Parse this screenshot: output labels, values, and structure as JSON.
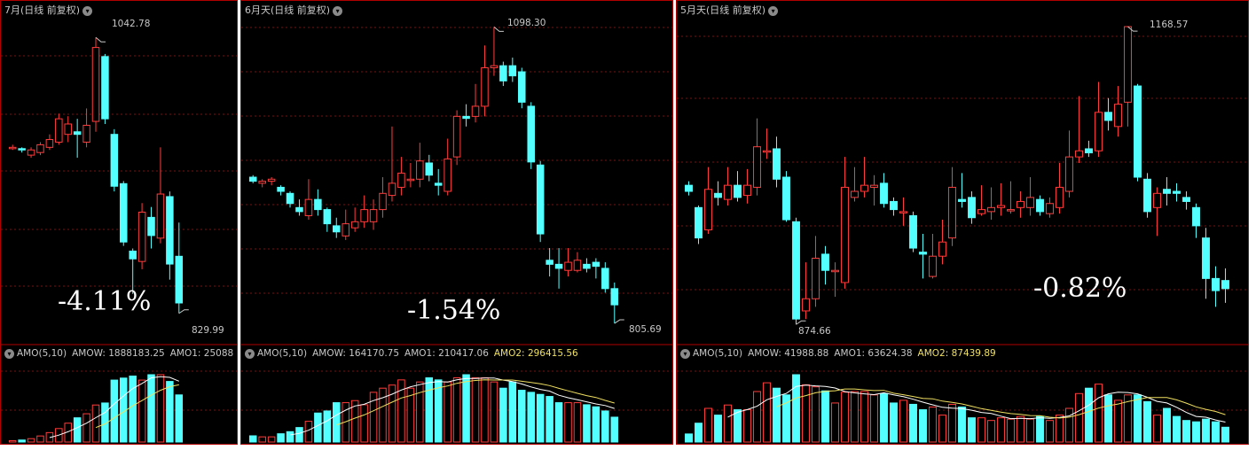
{
  "colors": {
    "up": "#ff3c3c",
    "down": "#54ffff",
    "ma1": "#ffffff",
    "ma2": "#f0e060",
    "grid": "#7a1010",
    "border": "#b00000"
  },
  "icons": {
    "period_menu": "chevron-down-icon",
    "indicator_menu": "chevron-down-icon"
  },
  "panels": [
    {
      "title": "7月(日线 前复权)",
      "high_label": "1042.78",
      "low_label": "829.99",
      "change_pct": "-4.11%",
      "vol": {
        "name": "AMO(5,10)",
        "amow": "AMOW: 1888183.25",
        "amo1": "AMO1: 25088"
      }
    },
    {
      "title": "6月天(日线 前复权)",
      "high_label": "1098.30",
      "low_label": "805.69",
      "change_pct": "-1.54%",
      "vol": {
        "name": "AMO(5,10)",
        "amow": "AMOW: 164170.75",
        "amo1": "AMO1: 210417.06",
        "amo2": "AMO2: 296415.56"
      }
    },
    {
      "title": "5月天(日线 前复权)",
      "high_label": "1168.57",
      "low_label": "874.66",
      "change_pct": "-0.82%",
      "vol": {
        "name": "AMO(5,10)",
        "amow": "AMOW: 41988.88",
        "amo1": "AMO1: 63624.38",
        "amo2": "AMO2: 87439.89"
      }
    }
  ],
  "chart_data": [
    {
      "type": "candlestick",
      "title": "7月(日线 前复权)",
      "ylim": [
        810,
        1060
      ],
      "candles": [
        [
          958,
          958,
          960,
          956
        ],
        [
          957,
          956,
          958,
          954
        ],
        [
          952,
          956,
          958,
          950
        ],
        [
          954,
          960,
          962,
          952
        ],
        [
          958,
          964,
          968,
          956
        ],
        [
          962,
          980,
          984,
          960
        ],
        [
          968,
          976,
          982,
          962
        ],
        [
          970,
          968,
          980,
          950
        ],
        [
          962,
          975,
          988,
          958
        ],
        [
          978,
          1035,
          1042.78,
          970
        ],
        [
          1028,
          980,
          1030,
          976
        ],
        [
          968,
          928,
          972,
          924
        ],
        [
          930,
          885,
          932,
          882
        ],
        [
          878,
          872,
          880,
          845
        ],
        [
          870,
          908,
          915,
          864
        ],
        [
          904,
          890,
          912,
          880
        ],
        [
          888,
          922,
          958,
          884
        ],
        [
          920,
          868,
          924,
          856
        ],
        [
          874,
          838,
          900,
          829.99
        ]
      ],
      "amo": [
        2,
        3,
        5,
        9,
        14,
        20,
        28,
        36,
        42,
        55,
        58,
        92,
        95,
        98,
        92,
        100,
        100,
        90,
        70
      ]
    },
    {
      "type": "candlestick",
      "title": "6月天(日线 前复权)",
      "ylim": [
        790,
        1110
      ],
      "candles": [
        [
          950,
          946,
          952,
          944
        ],
        [
          944,
          946,
          948,
          940
        ],
        [
          946,
          948,
          950,
          942
        ],
        [
          940,
          936,
          942,
          932
        ],
        [
          934,
          924,
          936,
          920
        ],
        [
          920,
          916,
          928,
          912
        ],
        [
          912,
          928,
          948,
          908
        ],
        [
          928,
          918,
          938,
          912
        ],
        [
          918,
          904,
          920,
          896
        ],
        [
          902,
          896,
          910,
          890
        ],
        [
          892,
          904,
          918,
          888
        ],
        [
          900,
          906,
          920,
          896
        ],
        [
          906,
          918,
          932,
          900
        ],
        [
          906,
          918,
          928,
          898
        ],
        [
          918,
          934,
          950,
          910
        ],
        [
          932,
          944,
          1000,
          926
        ],
        [
          940,
          954,
          970,
          932
        ],
        [
          948,
          948,
          964,
          940
        ],
        [
          948,
          966,
          984,
          940
        ],
        [
          964,
          952,
          972,
          946
        ],
        [
          944,
          942,
          958,
          932
        ],
        [
          936,
          968,
          988,
          932
        ],
        [
          970,
          1010,
          1016,
          962
        ],
        [
          1010,
          1008,
          1022,
          1000
        ],
        [
          1010,
          1020,
          1042,
          1004
        ],
        [
          1020,
          1058,
          1080,
          1010
        ],
        [
          1058,
          1060,
          1098.3,
          1050
        ],
        [
          1060,
          1045,
          1064,
          1040
        ],
        [
          1060,
          1050,
          1068,
          1044
        ],
        [
          1054,
          1024,
          1058,
          1018
        ],
        [
          1020,
          965,
          1024,
          958
        ],
        [
          962,
          894,
          966,
          886
        ],
        [
          868,
          864,
          880,
          852
        ],
        [
          864,
          860,
          880,
          840
        ],
        [
          858,
          866,
          880,
          852
        ],
        [
          858,
          868,
          876,
          856
        ],
        [
          864,
          860,
          870,
          856
        ],
        [
          866,
          862,
          870,
          850
        ],
        [
          860,
          840,
          866,
          836
        ],
        [
          840,
          824,
          846,
          805.69
        ]
      ],
      "amo": [
        6,
        5,
        5,
        8,
        10,
        14,
        20,
        28,
        30,
        38,
        38,
        40,
        36,
        48,
        52,
        55,
        60,
        52,
        58,
        62,
        60,
        58,
        62,
        65,
        62,
        62,
        58,
        52,
        58,
        50,
        48,
        46,
        44,
        38,
        38,
        38,
        36,
        34,
        30,
        24
      ]
    },
    {
      "type": "candlestick",
      "title": "5月天(日线 前复权)",
      "ylim": [
        860,
        1180
      ],
      "candles": [
        [
          1012,
          1006,
          1016,
          1002
        ],
        [
          990,
          960,
          992,
          954
        ],
        [
          968,
          1008,
          1030,
          964
        ],
        [
          1004,
          1000,
          1016,
          992
        ],
        [
          998,
          1012,
          1030,
          992
        ],
        [
          1012,
          1000,
          1026,
          996
        ],
        [
          1002,
          1012,
          1028,
          994
        ],
        [
          1010,
          1050,
          1078,
          1002
        ],
        [
          1046,
          1046,
          1068,
          1038
        ],
        [
          1048,
          1018,
          1060,
          1010
        ],
        [
          1020,
          978,
          1026,
          976
        ],
        [
          976,
          880,
          980,
          874.66
        ],
        [
          888,
          900,
          936,
          880
        ],
        [
          900,
          940,
          962,
          892
        ],
        [
          944,
          928,
          952,
          914
        ],
        [
          928,
          928,
          936,
          902
        ],
        [
          916,
          1010,
          1040,
          910
        ],
        [
          1000,
          1006,
          1030,
          996
        ],
        [
          1006,
          1012,
          1040,
          1000
        ],
        [
          1010,
          1012,
          1022,
          992
        ],
        [
          1014,
          994,
          1024,
          990
        ],
        [
          996,
          988,
          1000,
          982
        ],
        [
          986,
          986,
          1000,
          972
        ],
        [
          982,
          950,
          986,
          946
        ],
        [
          946,
          944,
          964,
          920
        ],
        [
          922,
          942,
          964,
          920
        ],
        [
          942,
          956,
          978,
          934
        ],
        [
          960,
          1010,
          1030,
          952
        ],
        [
          998,
          996,
          1024,
          990
        ],
        [
          1000,
          980,
          1006,
          974
        ],
        [
          984,
          988,
          1012,
          982
        ],
        [
          986,
          990,
          1010,
          978
        ],
        [
          990,
          992,
          1014,
          982
        ],
        [
          988,
          988,
          1016,
          984
        ],
        [
          990,
          996,
          1006,
          980
        ],
        [
          990,
          1000,
          1020,
          982
        ],
        [
          998,
          986,
          1002,
          982
        ],
        [
          984,
          994,
          1000,
          980
        ],
        [
          990,
          1010,
          1034,
          984
        ],
        [
          1006,
          1040,
          1066,
          1000
        ],
        [
          1040,
          1046,
          1100,
          1034
        ],
        [
          1048,
          1044,
          1056,
          1040
        ],
        [
          1046,
          1084,
          1114,
          1040
        ],
        [
          1084,
          1076,
          1098,
          1066
        ],
        [
          1070,
          1092,
          1110,
          1060
        ],
        [
          1094,
          1168.57,
          1168.57,
          1070
        ],
        [
          1110,
          1020,
          1112,
          1016
        ],
        [
          1018,
          986,
          1024,
          980
        ],
        [
          990,
          1004,
          1010,
          962
        ],
        [
          1008,
          1004,
          1020,
          992
        ],
        [
          1006,
          1004,
          1014,
          996
        ],
        [
          1000,
          996,
          1006,
          988
        ],
        [
          990,
          972,
          994,
          960
        ],
        [
          960,
          920,
          970,
          900
        ],
        [
          920,
          908,
          932,
          892
        ],
        [
          918,
          910,
          930,
          896
        ]
      ],
      "amo": [
        12,
        28,
        50,
        40,
        55,
        48,
        48,
        75,
        88,
        80,
        70,
        100,
        85,
        82,
        76,
        58,
        74,
        75,
        75,
        70,
        72,
        58,
        62,
        56,
        48,
        52,
        40,
        56,
        52,
        36,
        36,
        32,
        36,
        34,
        38,
        34,
        38,
        32,
        40,
        50,
        72,
        80,
        86,
        70,
        62,
        70,
        70,
        60,
        40,
        50,
        38,
        32,
        30,
        34,
        30,
        22
      ]
    }
  ]
}
